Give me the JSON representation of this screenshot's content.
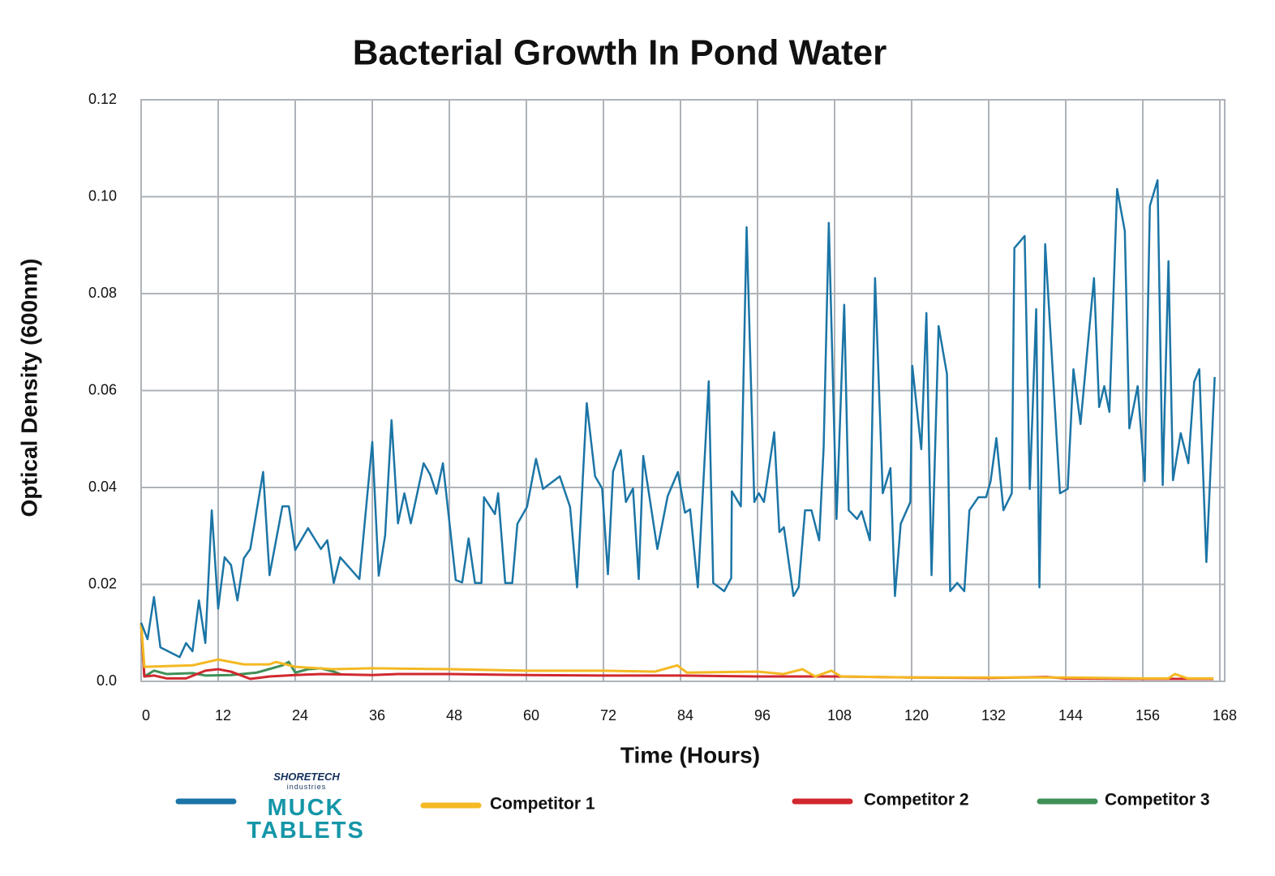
{
  "chart_data": {
    "type": "line",
    "title": "Bacterial Growth In Pond Water",
    "x_label": "Time (Hours)",
    "y_label": "Optical Density (600nm)",
    "xlim": [
      0,
      168
    ],
    "ylim": [
      0,
      0.12
    ],
    "xticks": [
      0,
      12,
      24,
      36,
      48,
      60,
      72,
      84,
      96,
      108,
      120,
      132,
      144,
      156,
      168
    ],
    "yticks": [
      {
        "value": 0,
        "label": "0.0"
      },
      0.02,
      0.04,
      0.06,
      0.08,
      {
        "value": 0.1,
        "label": "0.10"
      },
      0.12
    ],
    "grid": true,
    "legend_logo": {
      "brand": "SHORETECH",
      "sub": "industries"
    },
    "series": [
      {
        "name": "MUCK TABLETS",
        "color": "#1b75a6",
        "x": [
          0,
          1,
          2,
          3,
          6,
          7,
          8,
          9,
          10,
          11,
          12,
          13,
          14,
          15,
          16,
          17,
          19,
          20,
          22,
          23,
          24,
          26,
          28,
          29,
          30,
          31,
          34,
          36,
          37,
          38,
          39,
          40,
          41,
          42,
          44,
          45,
          46,
          47,
          49,
          50,
          51,
          52,
          53,
          53.4,
          55.1,
          55.6,
          56.7,
          57.8,
          58.6,
          60.1,
          61.5,
          62.6,
          65.2,
          66.8,
          67.9,
          69.4,
          70.7,
          71.8,
          72.7,
          73.5,
          74.7,
          75.5,
          76.6,
          77.5,
          78.2,
          80.4,
          82,
          83.6,
          84.7,
          85.5,
          86.7,
          88.4,
          89.1,
          90.8,
          91.9,
          92,
          93.4,
          94.3,
          95.5,
          96.2,
          97,
          98.6,
          99.4,
          100.1,
          101.6,
          102.4,
          103.4,
          104.4,
          105.6,
          106.3,
          107.1,
          108.3,
          109.5,
          110.2,
          111.5,
          112.2,
          113.5,
          114.3,
          115.5,
          116.7,
          117.4,
          118.3,
          119.8,
          120.1,
          121.5,
          122.3,
          123.1,
          124.2,
          125.5,
          126,
          127.1,
          128.2,
          129,
          130.4,
          131.6,
          132.3,
          133.2,
          134.3,
          135.6,
          136,
          137.6,
          138.4,
          139.4,
          139.9,
          140.8,
          143.1,
          144.3,
          145.2,
          146.3,
          148.4,
          149.2,
          150,
          150.8,
          152,
          153.2,
          153.9,
          155.2,
          156.3,
          157.1,
          158.3,
          159.1,
          160,
          160.7,
          161.9,
          163.1,
          164,
          164.8,
          165.9,
          167.2
        ],
        "values": [
          0.0121,
          0.0087,
          0.0174,
          0.007,
          0.005,
          0.0079,
          0.0062,
          0.0167,
          0.0079,
          0.0353,
          0.015,
          0.0256,
          0.024,
          0.0167,
          0.0254,
          0.0273,
          0.0432,
          0.0219,
          0.0361,
          0.0361,
          0.0271,
          0.0316,
          0.0273,
          0.0291,
          0.0203,
          0.0256,
          0.0211,
          0.0494,
          0.0218,
          0.0301,
          0.0539,
          0.0326,
          0.0388,
          0.0326,
          0.045,
          0.0427,
          0.0387,
          0.045,
          0.0209,
          0.0204,
          0.0295,
          0.0203,
          0.0203,
          0.038,
          0.0345,
          0.0388,
          0.0203,
          0.0203,
          0.0325,
          0.036,
          0.0459,
          0.0397,
          0.0423,
          0.036,
          0.0194,
          0.0574,
          0.0423,
          0.0398,
          0.0221,
          0.0433,
          0.0477,
          0.037,
          0.0398,
          0.0211,
          0.0465,
          0.0273,
          0.0382,
          0.0432,
          0.0348,
          0.0355,
          0.0194,
          0.0619,
          0.0203,
          0.0186,
          0.0213,
          0.0392,
          0.0361,
          0.0937,
          0.037,
          0.0388,
          0.037,
          0.0514,
          0.0308,
          0.0318,
          0.0176,
          0.0194,
          0.0353,
          0.0353,
          0.0291,
          0.0484,
          0.0946,
          0.0335,
          0.0777,
          0.0353,
          0.0335,
          0.0351,
          0.0291,
          0.0832,
          0.0388,
          0.044,
          0.0176,
          0.0325,
          0.037,
          0.0651,
          0.0479,
          0.076,
          0.0219,
          0.0733,
          0.0634,
          0.0186,
          0.0203,
          0.0186,
          0.0353,
          0.038,
          0.038,
          0.0413,
          0.0502,
          0.0353,
          0.0388,
          0.0894,
          0.0919,
          0.0397,
          0.0768,
          0.0194,
          0.0902,
          0.0388,
          0.0397,
          0.0644,
          0.0531,
          0.0832,
          0.0566,
          0.0609,
          0.0556,
          0.1016,
          0.0929,
          0.0522,
          0.0609,
          0.0413,
          0.0981,
          0.1034,
          0.0405,
          0.0867,
          0.0415,
          0.0512,
          0.045,
          0.0618,
          0.0644,
          0.0246,
          0.0628
        ]
      },
      {
        "name": "Competitor 1",
        "color": "#f4b923",
        "x": [
          0,
          0.5,
          8,
          12,
          16,
          20,
          21,
          24,
          30,
          36,
          48,
          60,
          72,
          80,
          83.5,
          85,
          96,
          100,
          103,
          105,
          107.5,
          109,
          120,
          144,
          156,
          160,
          161,
          163,
          167
        ],
        "values": [
          0.012,
          0.003,
          0.0033,
          0.0045,
          0.0035,
          0.0035,
          0.004,
          0.003,
          0.0025,
          0.0027,
          0.0025,
          0.0022,
          0.0022,
          0.002,
          0.0033,
          0.0018,
          0.002,
          0.0015,
          0.0025,
          0.001,
          0.0022,
          0.001,
          0.0008,
          0.0008,
          0.0006,
          0.0006,
          0.0015,
          0.0006,
          0.0006
        ]
      },
      {
        "name": "Competitor 2",
        "color": "#d1282f",
        "x": [
          0,
          0.5,
          2,
          4,
          7,
          10,
          12,
          14,
          17,
          20,
          24,
          28,
          36,
          40,
          48,
          60,
          72,
          84,
          96,
          108,
          120,
          132,
          141,
          144,
          156,
          167
        ],
        "values": [
          0.012,
          0.001,
          0.0012,
          0.0006,
          0.0006,
          0.0022,
          0.0025,
          0.002,
          0.0005,
          0.001,
          0.0013,
          0.0015,
          0.0013,
          0.0015,
          0.0015,
          0.0013,
          0.0012,
          0.0012,
          0.001,
          0.001,
          0.0008,
          0.0007,
          0.0009,
          0.0006,
          0.0005,
          0.0005
        ]
      },
      {
        "name": "Competitor 3",
        "color": "#3f8f57",
        "x": [
          0,
          0.5,
          2,
          4,
          8,
          10,
          14,
          18,
          22,
          23,
          24,
          26,
          28,
          30,
          31
        ],
        "values": [
          0.012,
          0.001,
          0.0022,
          0.0015,
          0.0017,
          0.0012,
          0.0013,
          0.0018,
          0.0033,
          0.004,
          0.0018,
          0.0025,
          0.0027,
          0.002,
          0.0015
        ]
      }
    ]
  }
}
